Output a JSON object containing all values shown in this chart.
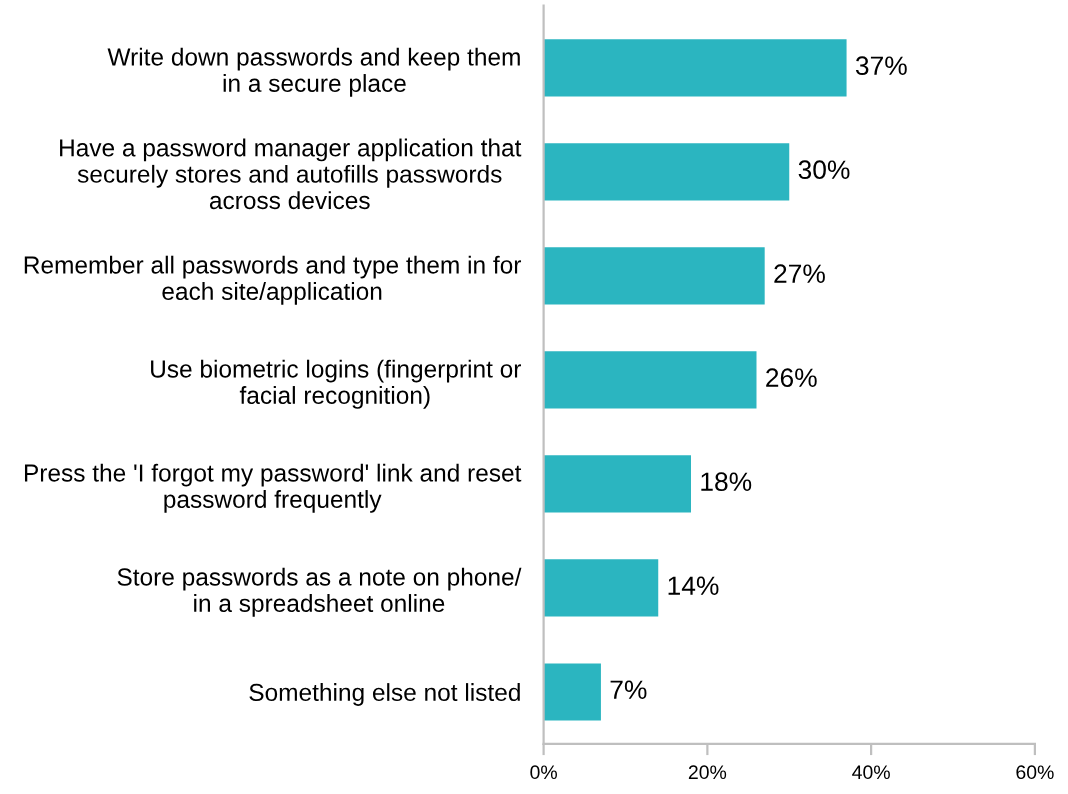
{
  "chart_data": {
    "type": "bar",
    "orientation": "horizontal",
    "categories": [
      "Write down passwords and keep them\nin a secure place",
      "Have a password manager application that\nsecurely stores and autofills passwords\nacross devices",
      "Remember all passwords and type them in for\neach site/application",
      "Use biometric logins (fingerprint or\nfacial recognition)",
      "Press the 'I forgot my password' link and reset\npassword frequently",
      "Store passwords as a note on phone/\nin a spreadsheet online",
      "Something else not listed"
    ],
    "values": [
      37,
      30,
      27,
      26,
      18,
      14,
      7
    ],
    "value_labels": [
      "37%",
      "30%",
      "27%",
      "26%",
      "18%",
      "14%",
      "7%"
    ],
    "color": "#2bb5c0",
    "xlim": [
      0,
      60
    ],
    "xticks": [
      {
        "value": 0,
        "label": "0%"
      },
      {
        "value": 20,
        "label": "20%"
      },
      {
        "value": 40,
        "label": "40%"
      },
      {
        "value": 60,
        "label": "60%"
      }
    ],
    "grid": false,
    "legend": false
  }
}
